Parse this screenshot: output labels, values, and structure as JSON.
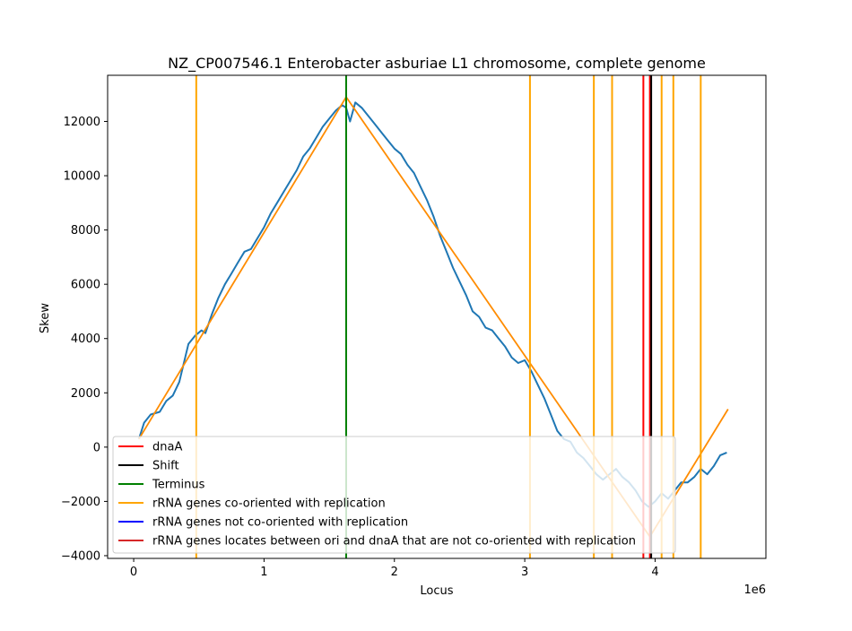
{
  "chart_data": {
    "type": "line",
    "title": "NZ_CP007546.1 Enterobacter asburiae L1 chromosome, complete genome",
    "xlabel": "Locus",
    "ylabel": "Skew",
    "x_offset_label": "1e6",
    "xlim": [
      -0.2,
      4.85
    ],
    "ylim": [
      -4100,
      13700
    ],
    "x_ticks": [
      0,
      1,
      2,
      3,
      4
    ],
    "x_tick_labels": [
      "0",
      "1",
      "2",
      "3",
      "4"
    ],
    "y_ticks": [
      -4000,
      -2000,
      0,
      2000,
      4000,
      6000,
      8000,
      10000,
      12000
    ],
    "y_tick_labels": [
      "−4000",
      "−2000",
      "0",
      "2000",
      "4000",
      "6000",
      "8000",
      "10000",
      "12000"
    ],
    "grid": false,
    "legend_position": "lower-left",
    "legend": [
      {
        "label": "dnaA",
        "color": "#ff0000"
      },
      {
        "label": "Shift",
        "color": "#000000"
      },
      {
        "label": "Terminus",
        "color": "#008000"
      },
      {
        "label": "rRNA genes co-oriented with replication",
        "color": "#ffa500"
      },
      {
        "label": "rRNA genes not co-oriented with replication",
        "color": "#0000ff"
      },
      {
        "label": "rRNA genes locates between ori and dnaA that are not co-oriented with replication",
        "color": "#d62728"
      }
    ],
    "series": [
      {
        "color": "#1f77b4",
        "x": [
          0.04,
          0.08,
          0.13,
          0.2,
          0.25,
          0.3,
          0.35,
          0.42,
          0.47,
          0.52,
          0.55,
          0.6,
          0.65,
          0.7,
          0.75,
          0.8,
          0.85,
          0.9,
          0.95,
          1.0,
          1.05,
          1.1,
          1.15,
          1.2,
          1.25,
          1.3,
          1.35,
          1.4,
          1.45,
          1.5,
          1.55,
          1.6,
          1.63,
          1.66,
          1.7,
          1.75,
          1.8,
          1.85,
          1.9,
          1.95,
          2.0,
          2.05,
          2.1,
          2.15,
          2.2,
          2.25,
          2.3,
          2.35,
          2.4,
          2.45,
          2.5,
          2.55,
          2.6,
          2.65,
          2.7,
          2.75,
          2.8,
          2.85,
          2.9,
          2.95,
          3.0,
          3.05,
          3.1,
          3.15,
          3.2,
          3.25,
          3.3,
          3.35,
          3.4,
          3.45,
          3.5,
          3.55,
          3.6,
          3.65,
          3.7,
          3.75,
          3.8,
          3.85,
          3.9,
          3.95,
          4.0,
          4.05,
          4.1,
          4.15,
          4.2,
          4.25,
          4.3,
          4.35,
          4.4,
          4.45,
          4.5,
          4.55
        ],
        "y": [
          300,
          900,
          1200,
          1300,
          1700,
          1900,
          2400,
          3800,
          4100,
          4300,
          4200,
          4900,
          5500,
          6000,
          6400,
          6800,
          7200,
          7300,
          7700,
          8100,
          8600,
          9000,
          9400,
          9800,
          10200,
          10700,
          11000,
          11400,
          11800,
          12100,
          12400,
          12600,
          12500,
          12000,
          12700,
          12500,
          12200,
          11900,
          11600,
          11300,
          11000,
          10800,
          10400,
          10100,
          9600,
          9100,
          8500,
          7800,
          7200,
          6600,
          6100,
          5600,
          5000,
          4800,
          4400,
          4300,
          4000,
          3700,
          3300,
          3100,
          3200,
          2800,
          2300,
          1800,
          1200,
          600,
          300,
          200,
          -200,
          -400,
          -700,
          -1000,
          -1200,
          -1000,
          -800,
          -1100,
          -1300,
          -1600,
          -2000,
          -2200,
          -2000,
          -1700,
          -1900,
          -1600,
          -1300,
          -1300,
          -1100,
          -800,
          -1000,
          -700,
          -300,
          -200
        ]
      },
      {
        "color": "#ff8c00",
        "x": [
          0.04,
          1.63,
          3.96,
          4.56
        ],
        "y": [
          300,
          12900,
          -3300,
          1400
        ]
      }
    ],
    "vertical_lines": [
      {
        "x": 0.48,
        "color": "#ffa500"
      },
      {
        "x": 1.63,
        "color": "#008000"
      },
      {
        "x": 3.04,
        "color": "#ffa500"
      },
      {
        "x": 3.53,
        "color": "#ffa500"
      },
      {
        "x": 3.67,
        "color": "#ffa500"
      },
      {
        "x": 3.91,
        "color": "#ff0000"
      },
      {
        "x": 3.96,
        "color": "#ff0000"
      },
      {
        "x": 3.97,
        "color": "#000000"
      },
      {
        "x": 4.05,
        "color": "#ffa500"
      },
      {
        "x": 4.14,
        "color": "#ffa500"
      },
      {
        "x": 4.35,
        "color": "#ffa500"
      }
    ]
  }
}
